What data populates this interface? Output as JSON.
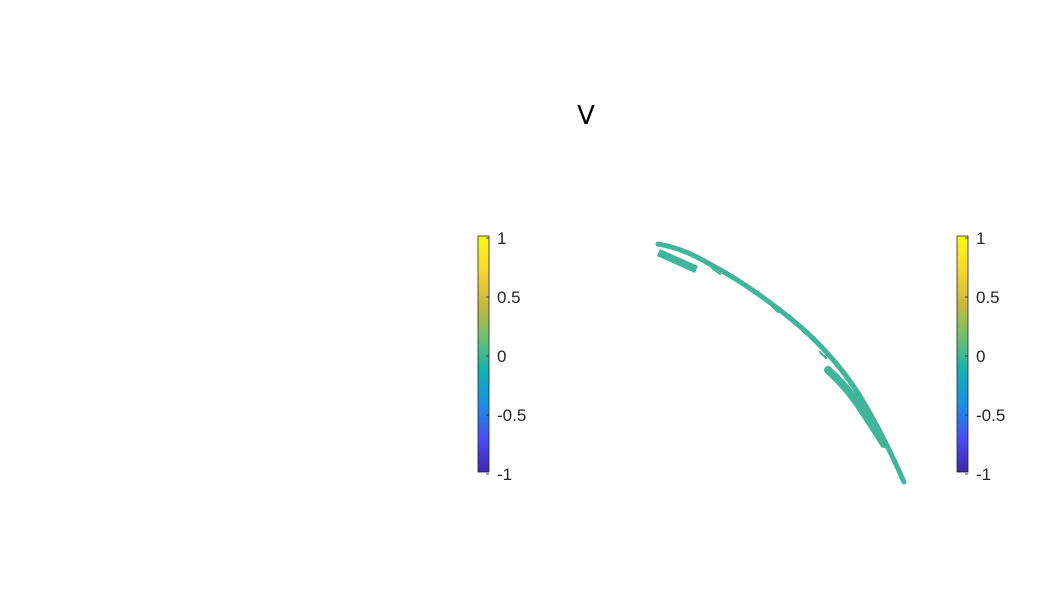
{
  "chart_data": {
    "type": "heatmap",
    "title": "V",
    "colormap": "parula",
    "colormap_stops": [
      "#3e26a8",
      "#4a4df2",
      "#1b8fe4",
      "#13b1b3",
      "#6cc170",
      "#c7b93e",
      "#fbd631",
      "#f9fb15"
    ],
    "surface_color": "#40b59a",
    "data_value": 0,
    "colorbars": [
      {
        "name": "left",
        "clim": [
          -1,
          1
        ],
        "ticks": [
          "1",
          "0.5",
          "0",
          "-0.5",
          "-1"
        ]
      },
      {
        "name": "right",
        "clim": [
          -1,
          1
        ],
        "ticks": [
          "1",
          "0.5",
          "0",
          "-0.5",
          "-1"
        ]
      }
    ]
  }
}
